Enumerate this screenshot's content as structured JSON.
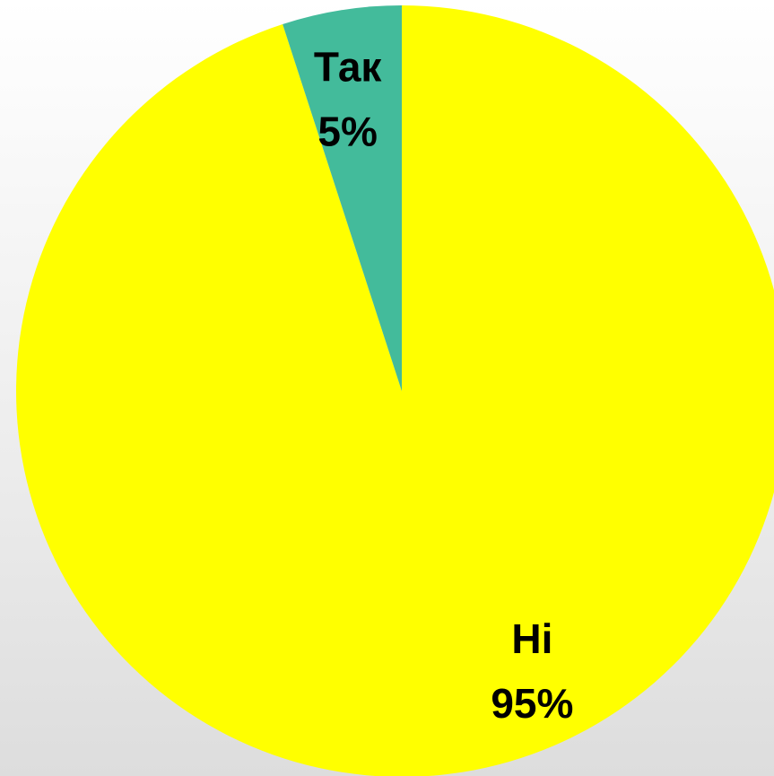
{
  "chart_data": {
    "type": "pie",
    "start_angle_deg": 0,
    "direction": "clockwise",
    "slices": [
      {
        "label": "Ні",
        "value": 95,
        "value_label": "95%",
        "color": "#ffff00"
      },
      {
        "label": "Так",
        "value": 5,
        "value_label": "5%",
        "color": "#43bb9b"
      }
    ],
    "legend": "none",
    "show_data_labels": true
  }
}
